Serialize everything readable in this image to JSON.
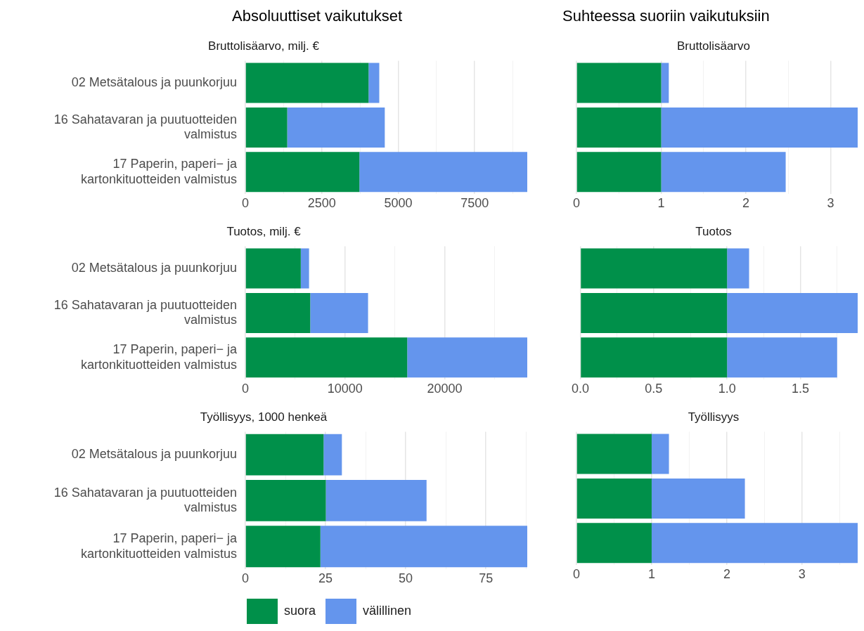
{
  "chart_data": [
    {
      "type": "bar",
      "title": "Absoluuttiset vaikutukset",
      "subtitle": "Bruttolisäarvo, milj. €",
      "orientation": "horizontal",
      "stacked": true,
      "categories": [
        "02 Metsätalous ja puunkorjuu",
        "16 Sahatavaran ja puutuotteiden\nvalmistus",
        "17 Paperin, paperi− ja\nkartonkituotteiden valmistus"
      ],
      "series": [
        {
          "color": "#00904a",
          "values": [
            4030,
            1370,
            3730
          ]
        },
        {
          "color": "#6495ed",
          "values": [
            350,
            3190,
            5490
          ]
        }
      ],
      "xlim": [
        0,
        9220
      ],
      "xticks": [
        0,
        {
          "value": 1250,
          "label": null
        },
        2500,
        {
          "value": 3750,
          "label": null
        },
        5000,
        {
          "value": 6250,
          "label": null
        },
        7500,
        {
          "value": 8750,
          "label": null
        }
      ],
      "grid": "x",
      "legend": false
    },
    {
      "type": "bar",
      "title": "Suhteessa suoriin vaikutuksiin",
      "subtitle": "Bruttolisäarvo",
      "orientation": "horizontal",
      "stacked": true,
      "categories": [
        null,
        null,
        null
      ],
      "series": [
        {
          "color": "#00904a",
          "values": [
            1,
            1,
            1
          ]
        },
        {
          "color": "#6495ed",
          "values": [
            0.09,
            2.32,
            1.47
          ]
        }
      ],
      "xlim": [
        0,
        3.32
      ],
      "xticks": [
        0,
        {
          "value": 0.5,
          "label": null
        },
        1,
        {
          "value": 1.5,
          "label": null
        },
        2,
        {
          "value": 2.5,
          "label": null
        },
        3
      ],
      "grid": "x",
      "legend": false
    },
    {
      "type": "bar",
      "subtitle": "Tuotos, milj. €",
      "orientation": "horizontal",
      "stacked": true,
      "categories": [
        "02 Metsätalous ja puunkorjuu",
        "16 Sahatavaran ja puutuotteiden\nvalmistus",
        "17 Paperin, paperi− ja\nkartonkituotteiden valmistus"
      ],
      "series": [
        {
          "color": "#00904a",
          "values": [
            5560,
            6510,
            16240
          ]
        },
        {
          "color": "#6495ed",
          "values": [
            830,
            5800,
            12040
          ]
        }
      ],
      "xlim": [
        0,
        28280
      ],
      "xticks": [
        0,
        {
          "value": 5000,
          "label": null
        },
        10000,
        {
          "value": 15000,
          "label": null
        },
        20000,
        {
          "value": 25000,
          "label": null
        }
      ],
      "grid": "x",
      "legend": false
    },
    {
      "type": "bar",
      "subtitle": "Tuotos",
      "orientation": "horizontal",
      "stacked": true,
      "categories": [
        null,
        null,
        null
      ],
      "series": [
        {
          "color": "#00904a",
          "values": [
            1,
            1,
            1
          ]
        },
        {
          "color": "#6495ed",
          "values": [
            0.15,
            0.89,
            0.75
          ]
        }
      ],
      "xlim": [
        0,
        1.89
      ],
      "xticks": [
        {
          "value": 0,
          "label": "0.0"
        },
        {
          "value": 0.25,
          "label": null
        },
        {
          "value": 0.5,
          "label": "0.5"
        },
        {
          "value": 0.75,
          "label": null
        },
        {
          "value": 1,
          "label": "1.0"
        },
        {
          "value": 1.25,
          "label": null
        },
        {
          "value": 1.5,
          "label": "1.5"
        },
        {
          "value": 1.75,
          "label": null
        }
      ],
      "grid": "x",
      "legend": false
    },
    {
      "type": "bar",
      "subtitle": "Työllisyys, 1000 henkeä",
      "orientation": "horizontal",
      "stacked": true,
      "categories": [
        "02 Metsätalous ja puunkorjuu",
        "16 Sahatavaran ja puutuotteiden\nvalmistus",
        "17 Paperin, paperi− ja\nkartonkituotteiden valmistus"
      ],
      "series": [
        {
          "name": "suora",
          "color": "#00904a",
          "values": [
            24.4,
            25.1,
            23.4
          ]
        },
        {
          "name": "välillinen",
          "color": "#6495ed",
          "values": [
            5.7,
            31.4,
            64.5
          ]
        }
      ],
      "xlim": [
        0,
        87.9
      ],
      "xticks": [
        0,
        {
          "value": 12.5,
          "label": null
        },
        25,
        {
          "value": 37.5,
          "label": null
        },
        50,
        {
          "value": 62.5,
          "label": null
        },
        75,
        {
          "value": 87.5,
          "label": null
        }
      ],
      "grid": "x",
      "legend": "bottom"
    },
    {
      "type": "bar",
      "subtitle": "Työllisyys",
      "orientation": "horizontal",
      "stacked": true,
      "categories": [
        null,
        null,
        null
      ],
      "series": [
        {
          "color": "#00904a",
          "values": [
            1,
            1,
            1
          ]
        },
        {
          "color": "#6495ed",
          "values": [
            0.23,
            1.24,
            2.74
          ]
        }
      ],
      "xlim": [
        0,
        3.74
      ],
      "xticks": [
        0,
        {
          "value": 0.5,
          "label": null
        },
        1,
        {
          "value": 1.5,
          "label": null
        },
        2,
        {
          "value": 2.5,
          "label": null
        },
        3,
        {
          "value": 3.5,
          "label": null
        }
      ],
      "grid": "x",
      "legend": false
    }
  ]
}
